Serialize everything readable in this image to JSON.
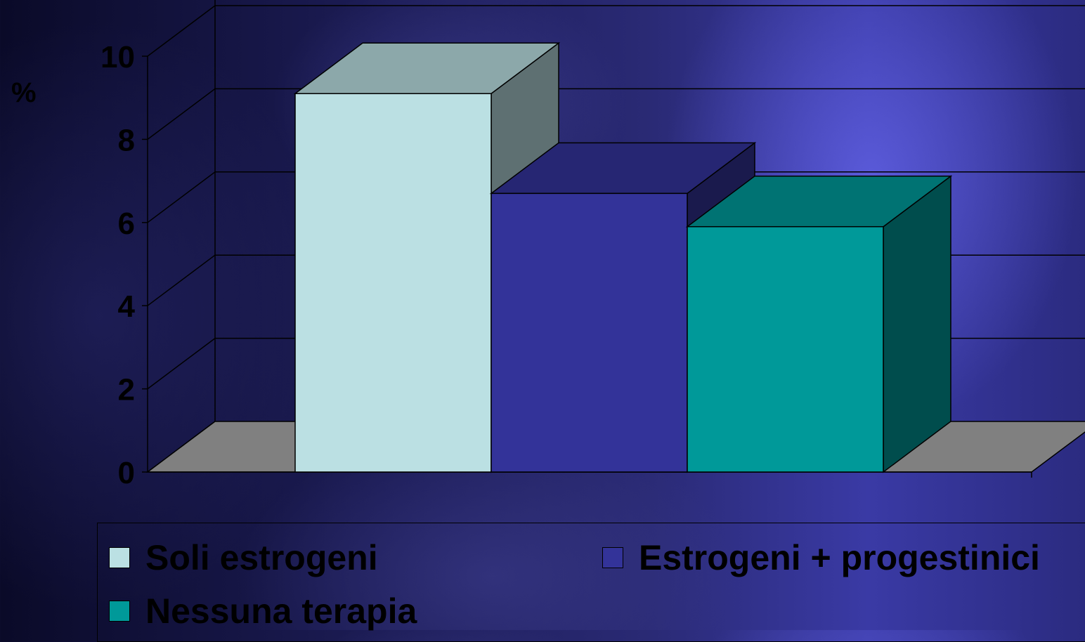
{
  "chart_data": {
    "type": "bar",
    "ylabel": "%",
    "ylim": [
      0,
      10
    ],
    "yticks": [
      "0",
      "2",
      "4",
      "6",
      "8",
      "10"
    ],
    "grid": true,
    "legend_position": "bottom",
    "series": [
      {
        "name": "Soli estrogeni",
        "value": 9.1,
        "color": "#bbe0e3"
      },
      {
        "name": "Estrogeni + progestinici",
        "value": 6.7,
        "color": "#333399"
      },
      {
        "name": "Nessuna terapia",
        "value": 5.9,
        "color": "#009999"
      }
    ]
  },
  "legend": {
    "items": [
      "Soli estrogeni",
      "Estrogeni + progestinici",
      "Nessuna terapia"
    ]
  }
}
